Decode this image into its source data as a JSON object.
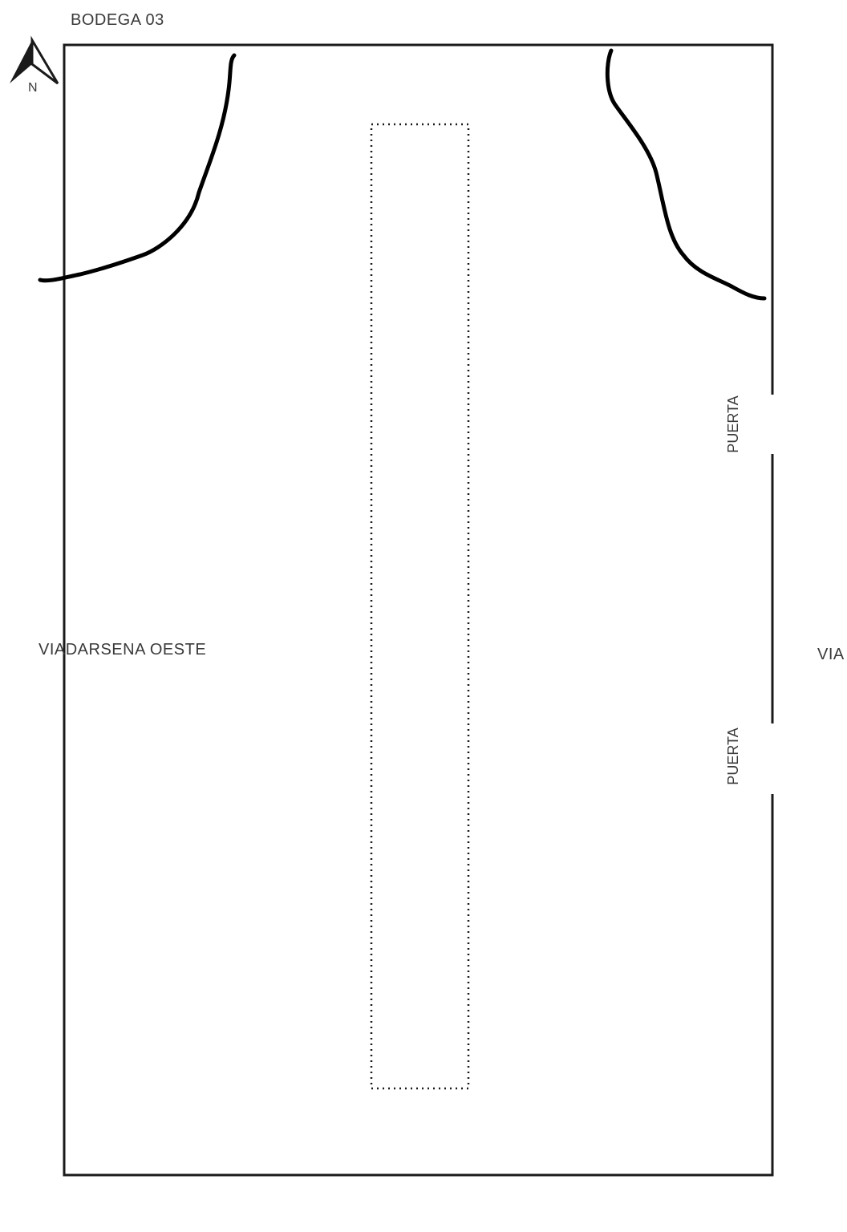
{
  "plan": {
    "title": "BODEGA 03",
    "north_label": "N",
    "road_west_label": "VIADARSENA OESTE",
    "road_east_label": "VIA",
    "doors": [
      {
        "label": "PUERTA"
      },
      {
        "label": "PUERTA"
      }
    ]
  },
  "icons": {
    "north_arrow": "north-arrow-icon"
  },
  "colors": {
    "line": "#1a1a1a",
    "text": "#3a3a3a",
    "background": "#ffffff"
  }
}
